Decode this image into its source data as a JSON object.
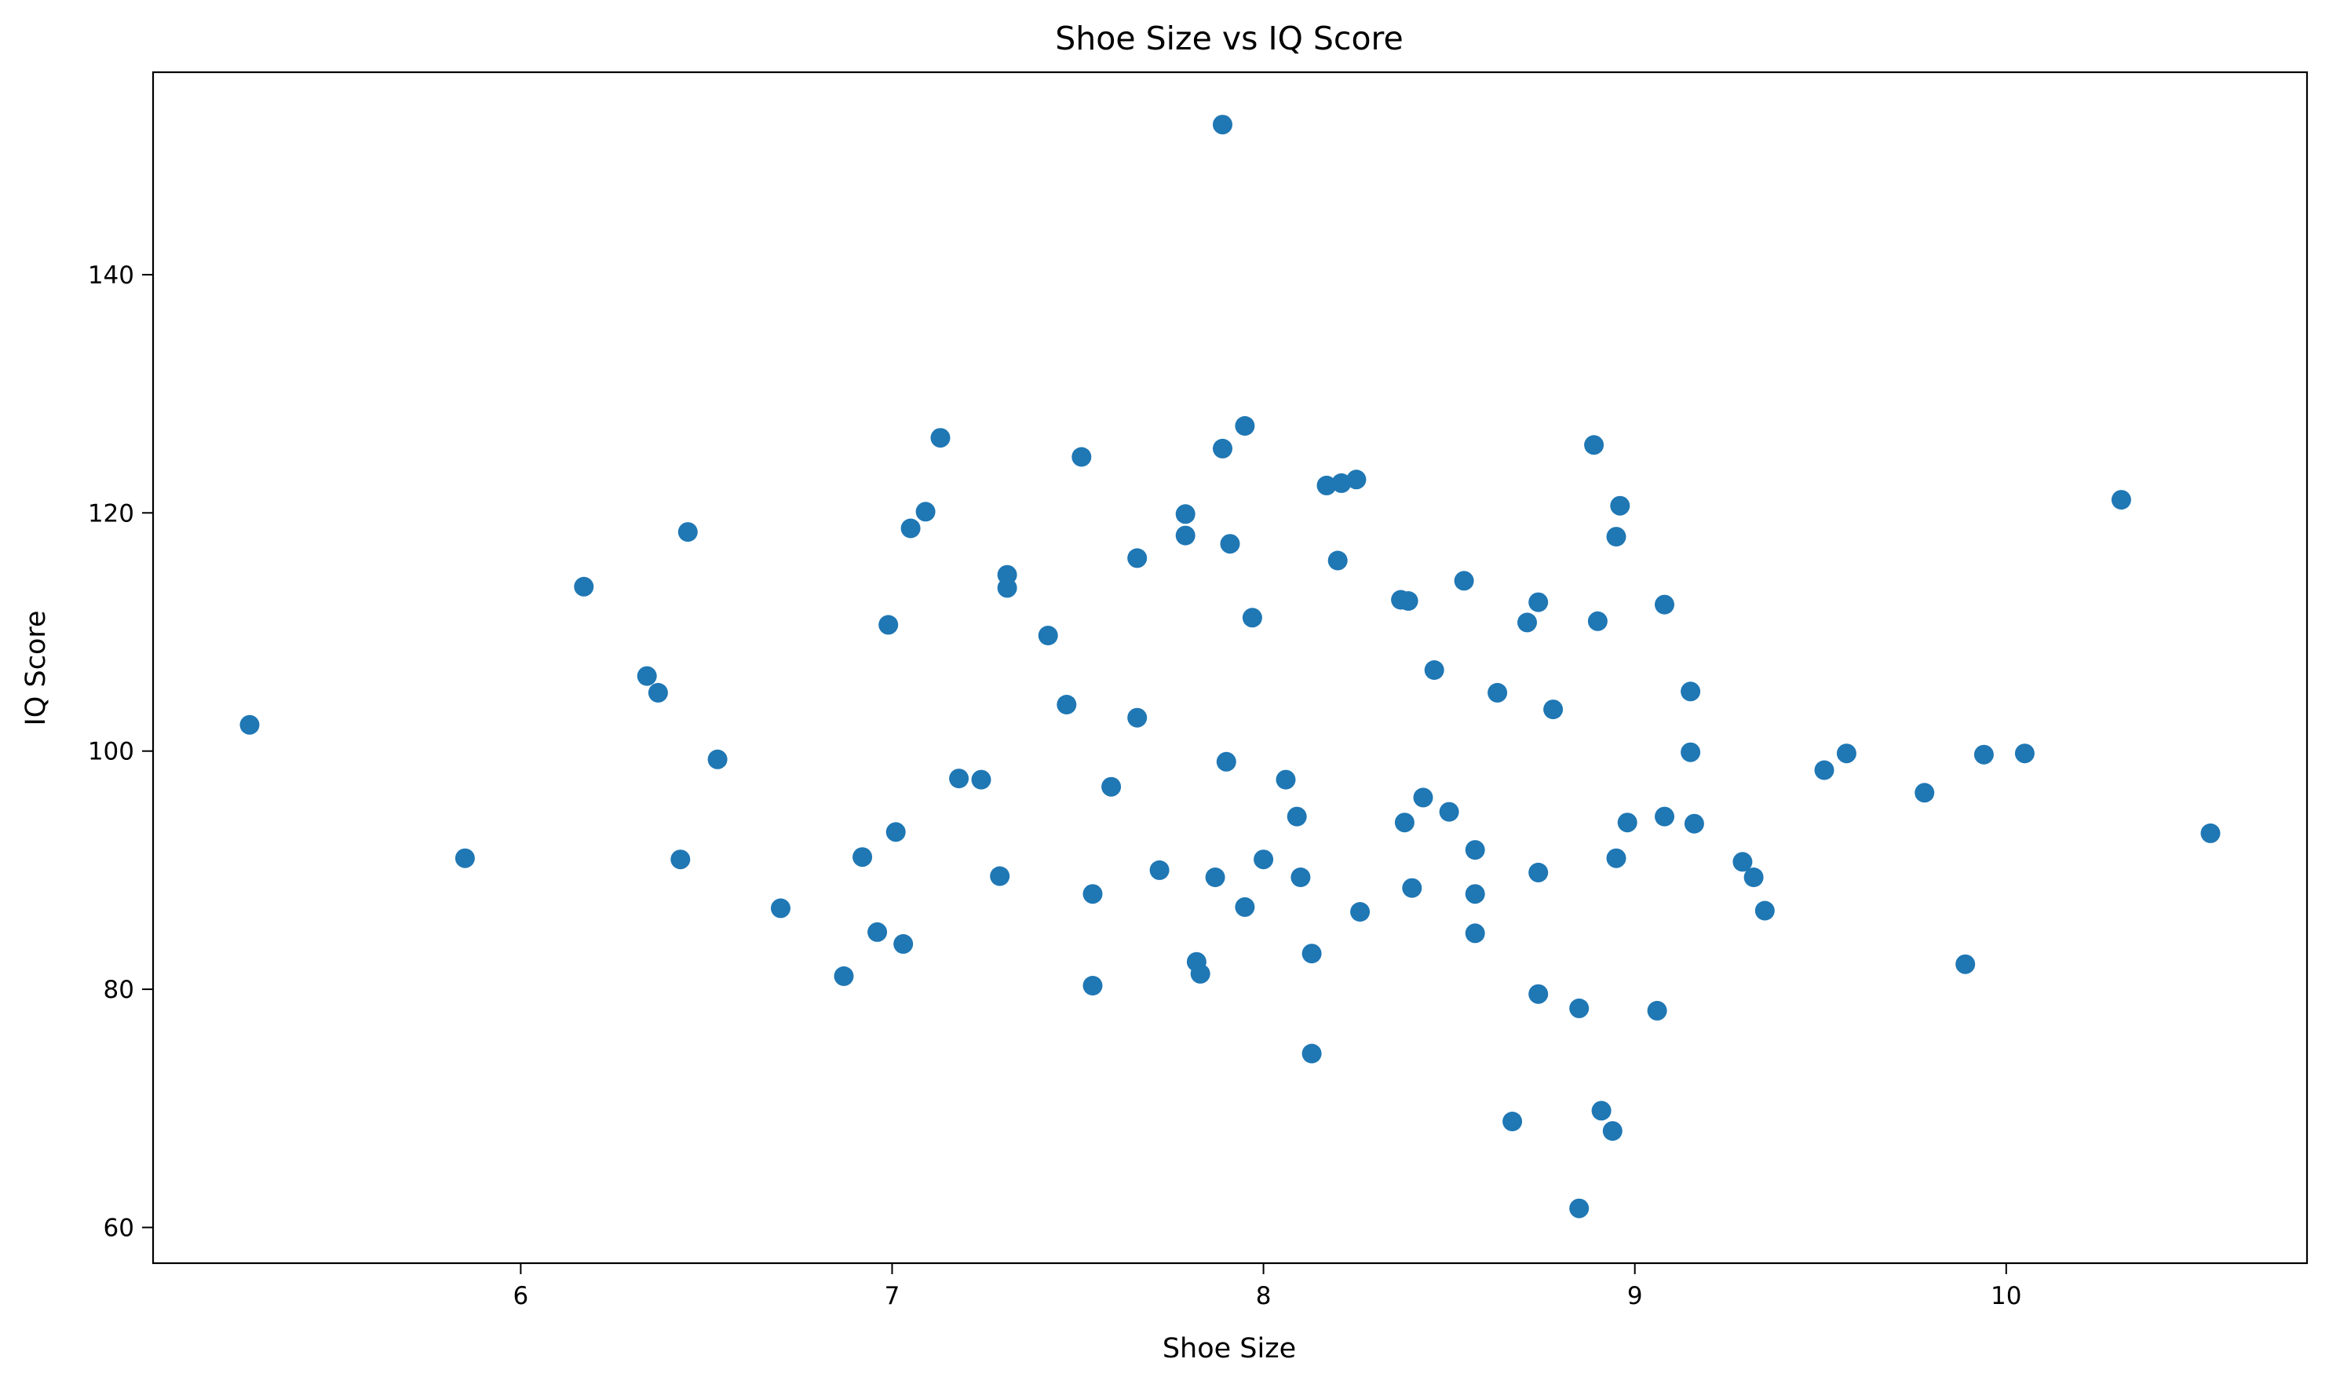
{
  "chart_data": {
    "type": "scatter",
    "title": "Shoe Size vs IQ Score",
    "xlabel": "Shoe Size",
    "ylabel": "IQ Score",
    "xlim": [
      5.01,
      10.81
    ],
    "ylim": [
      57.0,
      157.0
    ],
    "xticks": [
      6,
      7,
      8,
      9,
      10
    ],
    "yticks": [
      60,
      80,
      100,
      120,
      140
    ],
    "grid": false,
    "point_color": "#1f77b4",
    "points": [
      [
        5.27,
        102.2
      ],
      [
        5.85,
        91.0
      ],
      [
        6.17,
        113.8
      ],
      [
        6.34,
        106.3
      ],
      [
        6.37,
        104.9
      ],
      [
        6.43,
        90.9
      ],
      [
        6.45,
        118.4
      ],
      [
        6.53,
        99.3
      ],
      [
        6.7,
        86.8
      ],
      [
        6.87,
        81.1
      ],
      [
        6.92,
        91.1
      ],
      [
        6.96,
        84.8
      ],
      [
        6.99,
        110.6
      ],
      [
        7.01,
        93.2
      ],
      [
        7.03,
        83.8
      ],
      [
        7.05,
        118.7
      ],
      [
        7.09,
        120.1
      ],
      [
        7.13,
        126.3
      ],
      [
        7.18,
        97.7
      ],
      [
        7.24,
        97.6
      ],
      [
        7.29,
        89.5
      ],
      [
        7.31,
        114.8
      ],
      [
        7.31,
        113.7
      ],
      [
        7.42,
        109.7
      ],
      [
        7.47,
        103.9
      ],
      [
        7.51,
        124.7
      ],
      [
        7.54,
        88.0
      ],
      [
        7.54,
        80.3
      ],
      [
        7.59,
        97.0
      ],
      [
        7.66,
        102.8
      ],
      [
        7.66,
        116.2
      ],
      [
        7.72,
        90.0
      ],
      [
        7.79,
        118.1
      ],
      [
        7.79,
        119.9
      ],
      [
        7.82,
        82.3
      ],
      [
        7.83,
        81.3
      ],
      [
        7.87,
        89.4
      ],
      [
        7.89,
        125.4
      ],
      [
        7.89,
        152.6
      ],
      [
        7.9,
        99.1
      ],
      [
        7.91,
        117.4
      ],
      [
        7.95,
        127.3
      ],
      [
        7.95,
        86.9
      ],
      [
        7.97,
        111.2
      ],
      [
        8.0,
        90.9
      ],
      [
        8.06,
        97.6
      ],
      [
        8.09,
        94.5
      ],
      [
        8.1,
        89.4
      ],
      [
        8.13,
        83.0
      ],
      [
        8.13,
        74.6
      ],
      [
        8.17,
        122.3
      ],
      [
        8.2,
        116.0
      ],
      [
        8.21,
        122.5
      ],
      [
        8.25,
        122.8
      ],
      [
        8.26,
        86.5
      ],
      [
        8.37,
        112.7
      ],
      [
        8.38,
        94.0
      ],
      [
        8.39,
        112.6
      ],
      [
        8.4,
        88.5
      ],
      [
        8.43,
        96.1
      ],
      [
        8.46,
        106.8
      ],
      [
        8.5,
        94.9
      ],
      [
        8.54,
        114.3
      ],
      [
        8.57,
        91.7
      ],
      [
        8.57,
        88.0
      ],
      [
        8.57,
        84.7
      ],
      [
        8.63,
        104.9
      ],
      [
        8.67,
        68.9
      ],
      [
        8.71,
        110.8
      ],
      [
        8.74,
        89.8
      ],
      [
        8.74,
        112.5
      ],
      [
        8.74,
        79.6
      ],
      [
        8.78,
        103.5
      ],
      [
        8.85,
        78.4
      ],
      [
        8.85,
        61.6
      ],
      [
        8.89,
        125.7
      ],
      [
        8.9,
        110.9
      ],
      [
        8.91,
        69.8
      ],
      [
        8.94,
        68.1
      ],
      [
        8.95,
        118.0
      ],
      [
        8.95,
        91.0
      ],
      [
        8.96,
        120.6
      ],
      [
        8.98,
        94.0
      ],
      [
        9.06,
        78.2
      ],
      [
        9.08,
        112.3
      ],
      [
        9.08,
        94.5
      ],
      [
        9.15,
        105.0
      ],
      [
        9.15,
        99.9
      ],
      [
        9.16,
        93.9
      ],
      [
        9.29,
        90.7
      ],
      [
        9.32,
        89.4
      ],
      [
        9.35,
        86.6
      ],
      [
        9.51,
        98.4
      ],
      [
        9.57,
        99.8
      ],
      [
        9.78,
        96.5
      ],
      [
        9.89,
        82.1
      ],
      [
        9.94,
        99.7
      ],
      [
        10.05,
        99.8
      ],
      [
        10.31,
        121.1
      ],
      [
        10.55,
        93.1
      ]
    ]
  }
}
